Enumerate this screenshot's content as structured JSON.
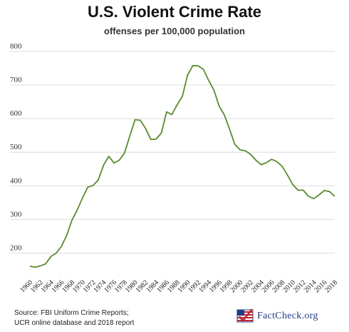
{
  "chart_data": {
    "type": "line",
    "title": "U.S. Violent Crime Rate",
    "subtitle": "offenses per 100,000 population",
    "xlabel": "",
    "ylabel": "",
    "ylim": [
      150,
      800
    ],
    "yticks": [
      200,
      300,
      400,
      500,
      600,
      700,
      800
    ],
    "xtick_labels": [
      "1960",
      "1962",
      "1964",
      "1966",
      "1968",
      "1970",
      "1972",
      "1974",
      "1976",
      "1978",
      "1980",
      "1982",
      "1984",
      "1986",
      "1988",
      "1990",
      "1992",
      "1994",
      "1996",
      "1998",
      "2000",
      "2002",
      "2004",
      "2006",
      "2008",
      "2010",
      "2012",
      "2014",
      "2016",
      "2018"
    ],
    "grid": true,
    "line_color": "#5a8a2e",
    "series": [
      {
        "x": [
          1960,
          1961,
          1962,
          1963,
          1964,
          1965,
          1966,
          1967,
          1968,
          1969,
          1970,
          1971,
          1972,
          1973,
          1974,
          1975,
          1976,
          1977,
          1978,
          1979,
          1980,
          1981,
          1982,
          1983,
          1984,
          1985,
          1986,
          1987,
          1988,
          1989,
          1990,
          1991,
          1992,
          1993,
          1994,
          1995,
          1996,
          1997,
          1998,
          1999,
          2000,
          2001,
          2002,
          2003,
          2004,
          2005,
          2006,
          2007,
          2008,
          2009,
          2010,
          2011,
          2012,
          2013,
          2014,
          2015,
          2016,
          2017,
          2018
        ],
        "values": [
          161,
          158,
          162,
          168,
          190,
          200,
          220,
          253,
          298,
          328,
          364,
          396,
          401,
          417,
          461,
          488,
          468,
          476,
          498,
          548,
          597,
          595,
          571,
          538,
          539,
          557,
          620,
          612,
          641,
          666,
          730,
          758,
          757,
          747,
          714,
          685,
          637,
          611,
          568,
          523,
          507,
          504,
          494,
          476,
          463,
          469,
          479,
          472,
          458,
          432,
          404,
          387,
          387,
          369,
          362,
          373,
          386,
          383,
          369
        ]
      }
    ]
  },
  "footer": {
    "source_line1": "Source: FBI Uniform Crime Reports;",
    "source_line2": "UCR online database and 2018 report",
    "brand": "FactCheck.org"
  }
}
